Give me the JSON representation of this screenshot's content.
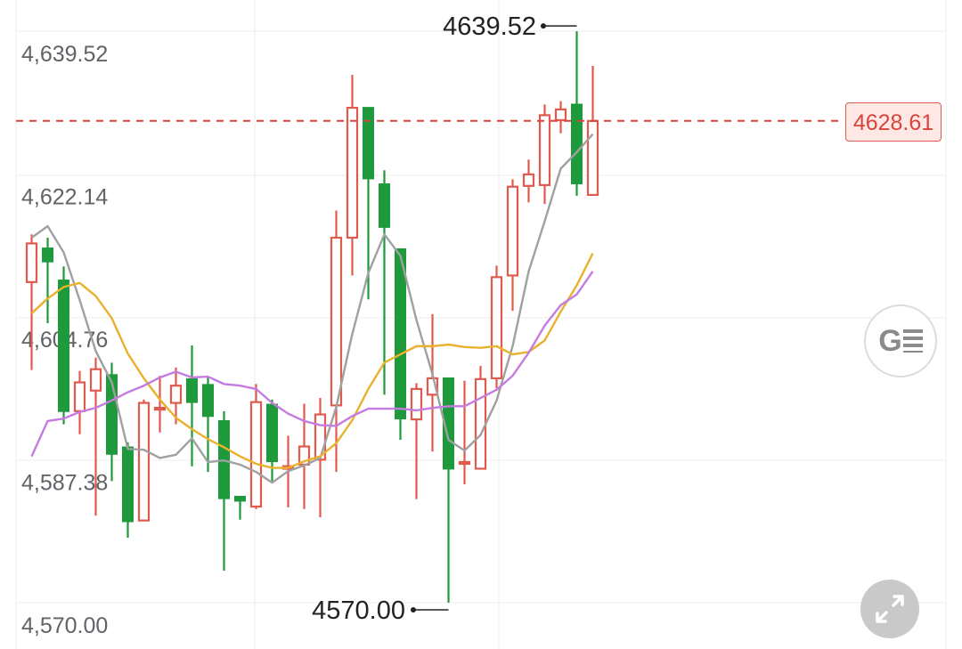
{
  "chart_data": {
    "type": "candlestick",
    "y_ticks": [
      "4,639.52",
      "4,622.14",
      "4,604.76",
      "4,587.38",
      "4,570.00"
    ],
    "ylim": [
      4570.0,
      4639.52
    ],
    "grid": true,
    "max_label": "4639.52",
    "min_label": "4570.00",
    "current_price": "4628.61",
    "colors": {
      "up": "#e05a4e",
      "down": "#1e9a3c",
      "ma_gray": "#a0a0a0",
      "ma_orange": "#e9b12c",
      "ma_purple": "#c57be0",
      "price_line": "#d9443a"
    },
    "candles": [
      {
        "o": 4609.0,
        "c": 4613.7,
        "h": 4614.8,
        "l": 4598.3
      },
      {
        "o": 4613.2,
        "c": 4611.4,
        "h": 4614.4,
        "l": 4604.0
      },
      {
        "o": 4609.3,
        "c": 4593.2,
        "h": 4610.9,
        "l": 4591.7
      },
      {
        "o": 4593.3,
        "c": 4596.8,
        "h": 4598.2,
        "l": 4590.5
      },
      {
        "o": 4595.8,
        "c": 4598.4,
        "h": 4599.8,
        "l": 4580.6
      },
      {
        "o": 4597.8,
        "c": 4588.0,
        "h": 4599.2,
        "l": 4584.8
      },
      {
        "o": 4589.0,
        "c": 4579.8,
        "h": 4589.5,
        "l": 4577.9
      },
      {
        "o": 4580.0,
        "c": 4594.3,
        "h": 4594.7,
        "l": 4580.0
      },
      {
        "o": 4593.6,
        "c": 4593.6,
        "h": 4597.6,
        "l": 4590.7
      },
      {
        "o": 4594.3,
        "c": 4596.4,
        "h": 4598.6,
        "l": 4591.7
      },
      {
        "o": 4597.3,
        "c": 4594.3,
        "h": 4601.3,
        "l": 4586.6
      },
      {
        "o": 4596.6,
        "c": 4592.6,
        "h": 4597.5,
        "l": 4585.9
      },
      {
        "o": 4592.2,
        "c": 4582.6,
        "h": 4593.3,
        "l": 4573.9
      },
      {
        "o": 4583.0,
        "c": 4582.3,
        "h": 4583.0,
        "l": 4580.1
      },
      {
        "o": 4581.7,
        "c": 4594.4,
        "h": 4596.6,
        "l": 4581.4
      },
      {
        "o": 4594.2,
        "c": 4587.1,
        "h": 4594.7,
        "l": 4584.8
      },
      {
        "o": 4586.3,
        "c": 4586.6,
        "h": 4590.3,
        "l": 4581.6
      },
      {
        "o": 4586.8,
        "c": 4589.0,
        "h": 4594.2,
        "l": 4581.4
      },
      {
        "o": 4587.4,
        "c": 4592.9,
        "h": 4594.9,
        "l": 4580.4
      },
      {
        "o": 4594.0,
        "c": 4614.4,
        "h": 4617.7,
        "l": 4585.9
      },
      {
        "o": 4614.4,
        "c": 4630.2,
        "h": 4634.2,
        "l": 4609.8
      },
      {
        "o": 4630.3,
        "c": 4621.5,
        "h": 4630.3,
        "l": 4606.9
      },
      {
        "o": 4621.0,
        "c": 4615.6,
        "h": 4622.6,
        "l": 4595.3
      },
      {
        "o": 4613.1,
        "c": 4592.3,
        "h": 4613.1,
        "l": 4589.8
      },
      {
        "o": 4592.3,
        "c": 4596.0,
        "h": 4596.7,
        "l": 4582.6
      },
      {
        "o": 4595.3,
        "c": 4597.3,
        "h": 4605.1,
        "l": 4588.4
      },
      {
        "o": 4597.4,
        "c": 4586.2,
        "h": 4597.4,
        "l": 4570.0
      },
      {
        "o": 4587.0,
        "c": 4587.0,
        "h": 4597.0,
        "l": 4584.4
      },
      {
        "o": 4586.3,
        "c": 4597.2,
        "h": 4598.8,
        "l": 4586.3
      },
      {
        "o": 4597.3,
        "c": 4609.6,
        "h": 4611.0,
        "l": 4596.1
      },
      {
        "o": 4609.8,
        "c": 4620.6,
        "h": 4621.5,
        "l": 4605.5
      },
      {
        "o": 4620.7,
        "c": 4622.1,
        "h": 4623.9,
        "l": 4618.7
      },
      {
        "o": 4620.8,
        "c": 4629.3,
        "h": 4630.6,
        "l": 4618.5
      },
      {
        "o": 4628.7,
        "c": 4630.0,
        "h": 4631.0,
        "l": 4627.1
      },
      {
        "o": 4630.7,
        "c": 4620.9,
        "h": 4639.5,
        "l": 4619.5
      },
      {
        "o": 4619.6,
        "c": 4628.6,
        "h": 4635.3,
        "l": 4619.6
      }
    ],
    "ma_gray": [
      4614.4,
      4615.8,
      4612.6,
      4606.8,
      4600.6,
      4596.8,
      4588.7,
      4588.6,
      4587.6,
      4588.0,
      4590.0,
      4587.1,
      4587.3,
      4586.8,
      4585.9,
      4584.6,
      4586.0,
      4586.7,
      4587.6,
      4593.8,
      4602.7,
      4610.1,
      4614.8,
      4612.2,
      4604.4,
      4597.8,
      4589.8,
      4588.5,
      4590.4,
      4594.6,
      4601.2,
      4610.3,
      4616.4,
      4622.8,
      4624.8,
      4627.0
    ],
    "ma_orange": [
      4605.2,
      4607.0,
      4608.4,
      4608.9,
      4607.3,
      4604.6,
      4600.3,
      4597.3,
      4594.7,
      4592.5,
      4591.1,
      4589.9,
      4588.9,
      4587.8,
      4586.9,
      4586.4,
      4586.4,
      4587.2,
      4587.8,
      4589.4,
      4592.2,
      4596.0,
      4599.2,
      4600.2,
      4601.2,
      4601.2,
      4601.4,
      4601.1,
      4601.0,
      4601.2,
      4600.2,
      4600.5,
      4601.9,
      4605.4,
      4608.6,
      4612.5
    ],
    "ma_purple": [
      4587.8,
      4592.1,
      4592.4,
      4593.2,
      4593.7,
      4594.6,
      4595.6,
      4596.4,
      4597.4,
      4598.1,
      4597.4,
      4597.5,
      4596.6,
      4596.4,
      4596.0,
      4594.3,
      4593.0,
      4592.1,
      4591.6,
      4591.5,
      4592.7,
      4593.6,
      4593.6,
      4593.6,
      4593.4,
      4593.7,
      4593.9,
      4593.9,
      4594.9,
      4595.9,
      4597.6,
      4600.4,
      4603.7,
      4606.2,
      4607.5,
      4610.3
    ]
  }
}
